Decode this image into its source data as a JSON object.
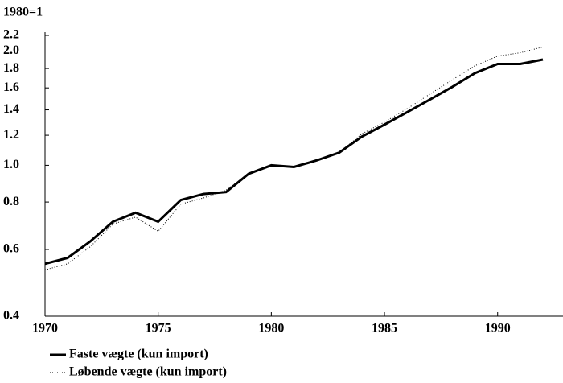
{
  "chart_data": {
    "type": "line",
    "y_label": "1980=1",
    "log_y": true,
    "x": [
      1970,
      1971,
      1972,
      1973,
      1974,
      1975,
      1976,
      1977,
      1978,
      1979,
      1980,
      1981,
      1982,
      1983,
      1984,
      1985,
      1986,
      1987,
      1988,
      1989,
      1990,
      1991,
      1992
    ],
    "series": [
      {
        "name": "Faste vægte (kun import)",
        "color": "#000000",
        "style": "solid",
        "values": [
          0.55,
          0.57,
          0.63,
          0.71,
          0.75,
          0.71,
          0.81,
          0.84,
          0.85,
          0.95,
          1.0,
          0.99,
          1.03,
          1.08,
          1.19,
          1.28,
          1.38,
          1.49,
          1.61,
          1.75,
          1.85,
          1.85,
          1.9
        ]
      },
      {
        "name": "Løbende vægte (kun import)",
        "color": "#000000",
        "style": "dotted",
        "values": [
          0.53,
          0.55,
          0.61,
          0.7,
          0.73,
          0.67,
          0.79,
          0.82,
          0.86,
          0.95,
          1.0,
          0.99,
          1.03,
          1.08,
          1.21,
          1.3,
          1.41,
          1.54,
          1.68,
          1.83,
          1.94,
          1.98,
          2.05
        ]
      }
    ],
    "xlim": [
      1970,
      1992
    ],
    "xticks": [
      1970,
      1975,
      1980,
      1985,
      1990
    ],
    "ylim": [
      0.4,
      2.2
    ],
    "yticks": [
      0.4,
      0.6,
      0.8,
      {
        "value": 1,
        "label": "1.0"
      },
      1.2,
      1.4,
      1.6,
      1.8,
      {
        "value": 2,
        "label": "2.0"
      },
      2.2
    ],
    "legend": "bottom-left"
  }
}
